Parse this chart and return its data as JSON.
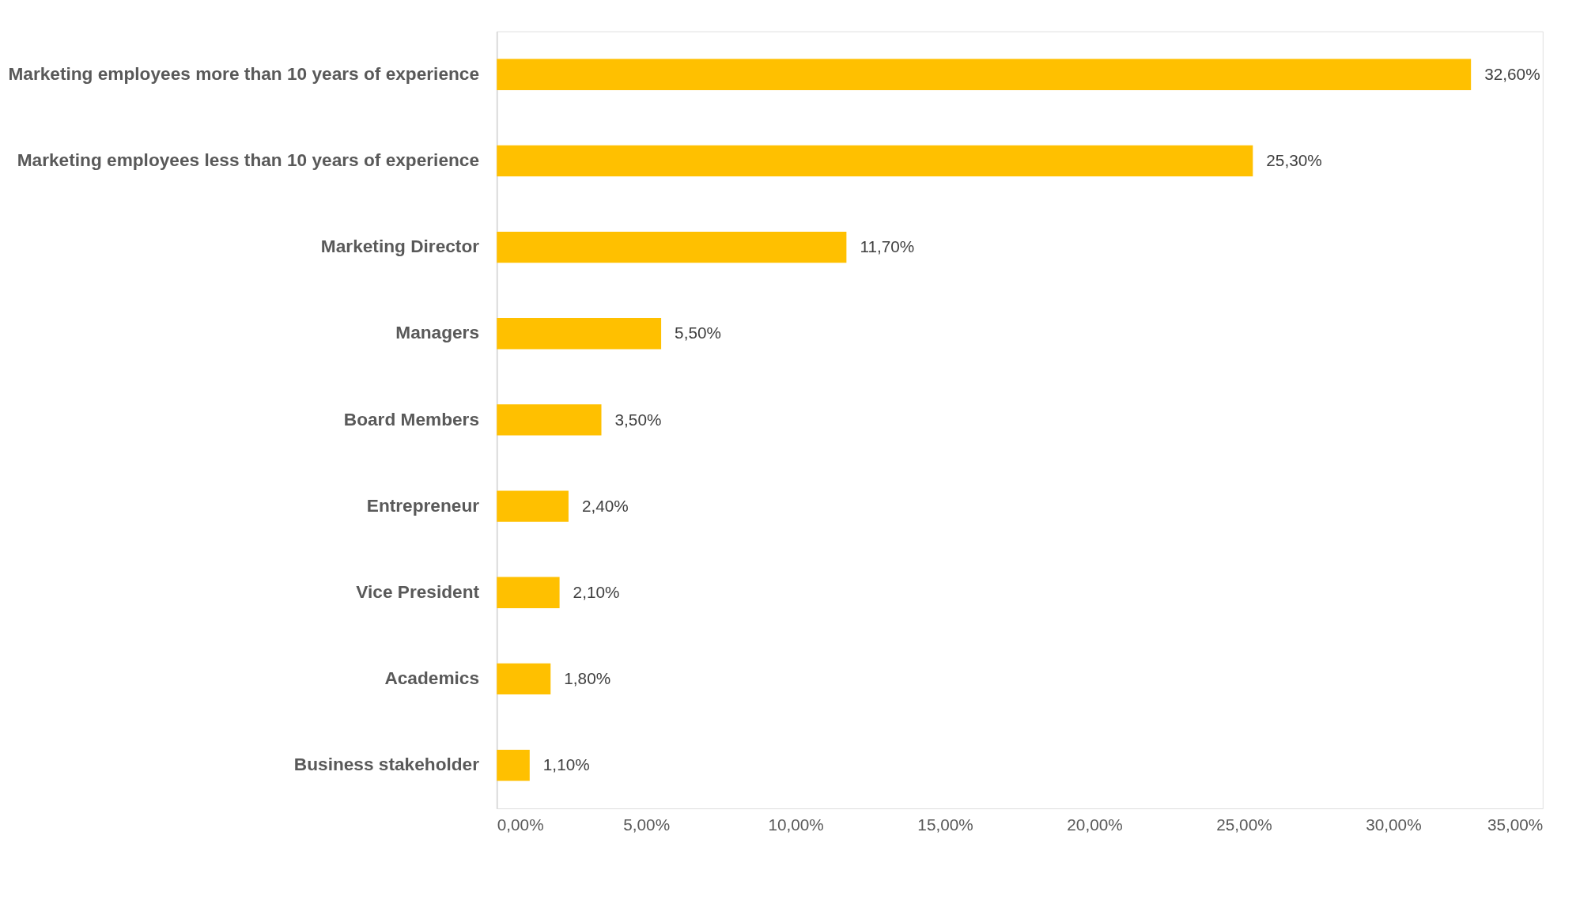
{
  "chart_data": {
    "type": "bar",
    "orientation": "horizontal",
    "categories": [
      "Marketing employees more than 10 years of experience",
      "Marketing employees less than 10 years of experience",
      "Marketing Director",
      "Managers",
      "Board Members",
      "Entrepreneur",
      "Vice President",
      "Academics",
      "Business stakeholder"
    ],
    "values": [
      32.6,
      25.3,
      11.7,
      5.5,
      3.5,
      2.4,
      2.1,
      1.8,
      1.1
    ],
    "value_labels": [
      "32,60%",
      "25,30%",
      "11,70%",
      "5,50%",
      "3,50%",
      "2,40%",
      "2,10%",
      "1,80%",
      "1,10%"
    ],
    "color": "#ffc000",
    "xlim": [
      0,
      35
    ],
    "xticks": [
      {
        "value": 0,
        "label": "0,00%"
      },
      {
        "value": 5,
        "label": "5,00%"
      },
      {
        "value": 10,
        "label": "10,00%"
      },
      {
        "value": 15,
        "label": "15,00%"
      },
      {
        "value": 20,
        "label": "20,00%"
      },
      {
        "value": 25,
        "label": "25,00%"
      },
      {
        "value": 30,
        "label": "30,00%"
      },
      {
        "value": 35,
        "label": "35,00%"
      }
    ],
    "grid": false
  }
}
